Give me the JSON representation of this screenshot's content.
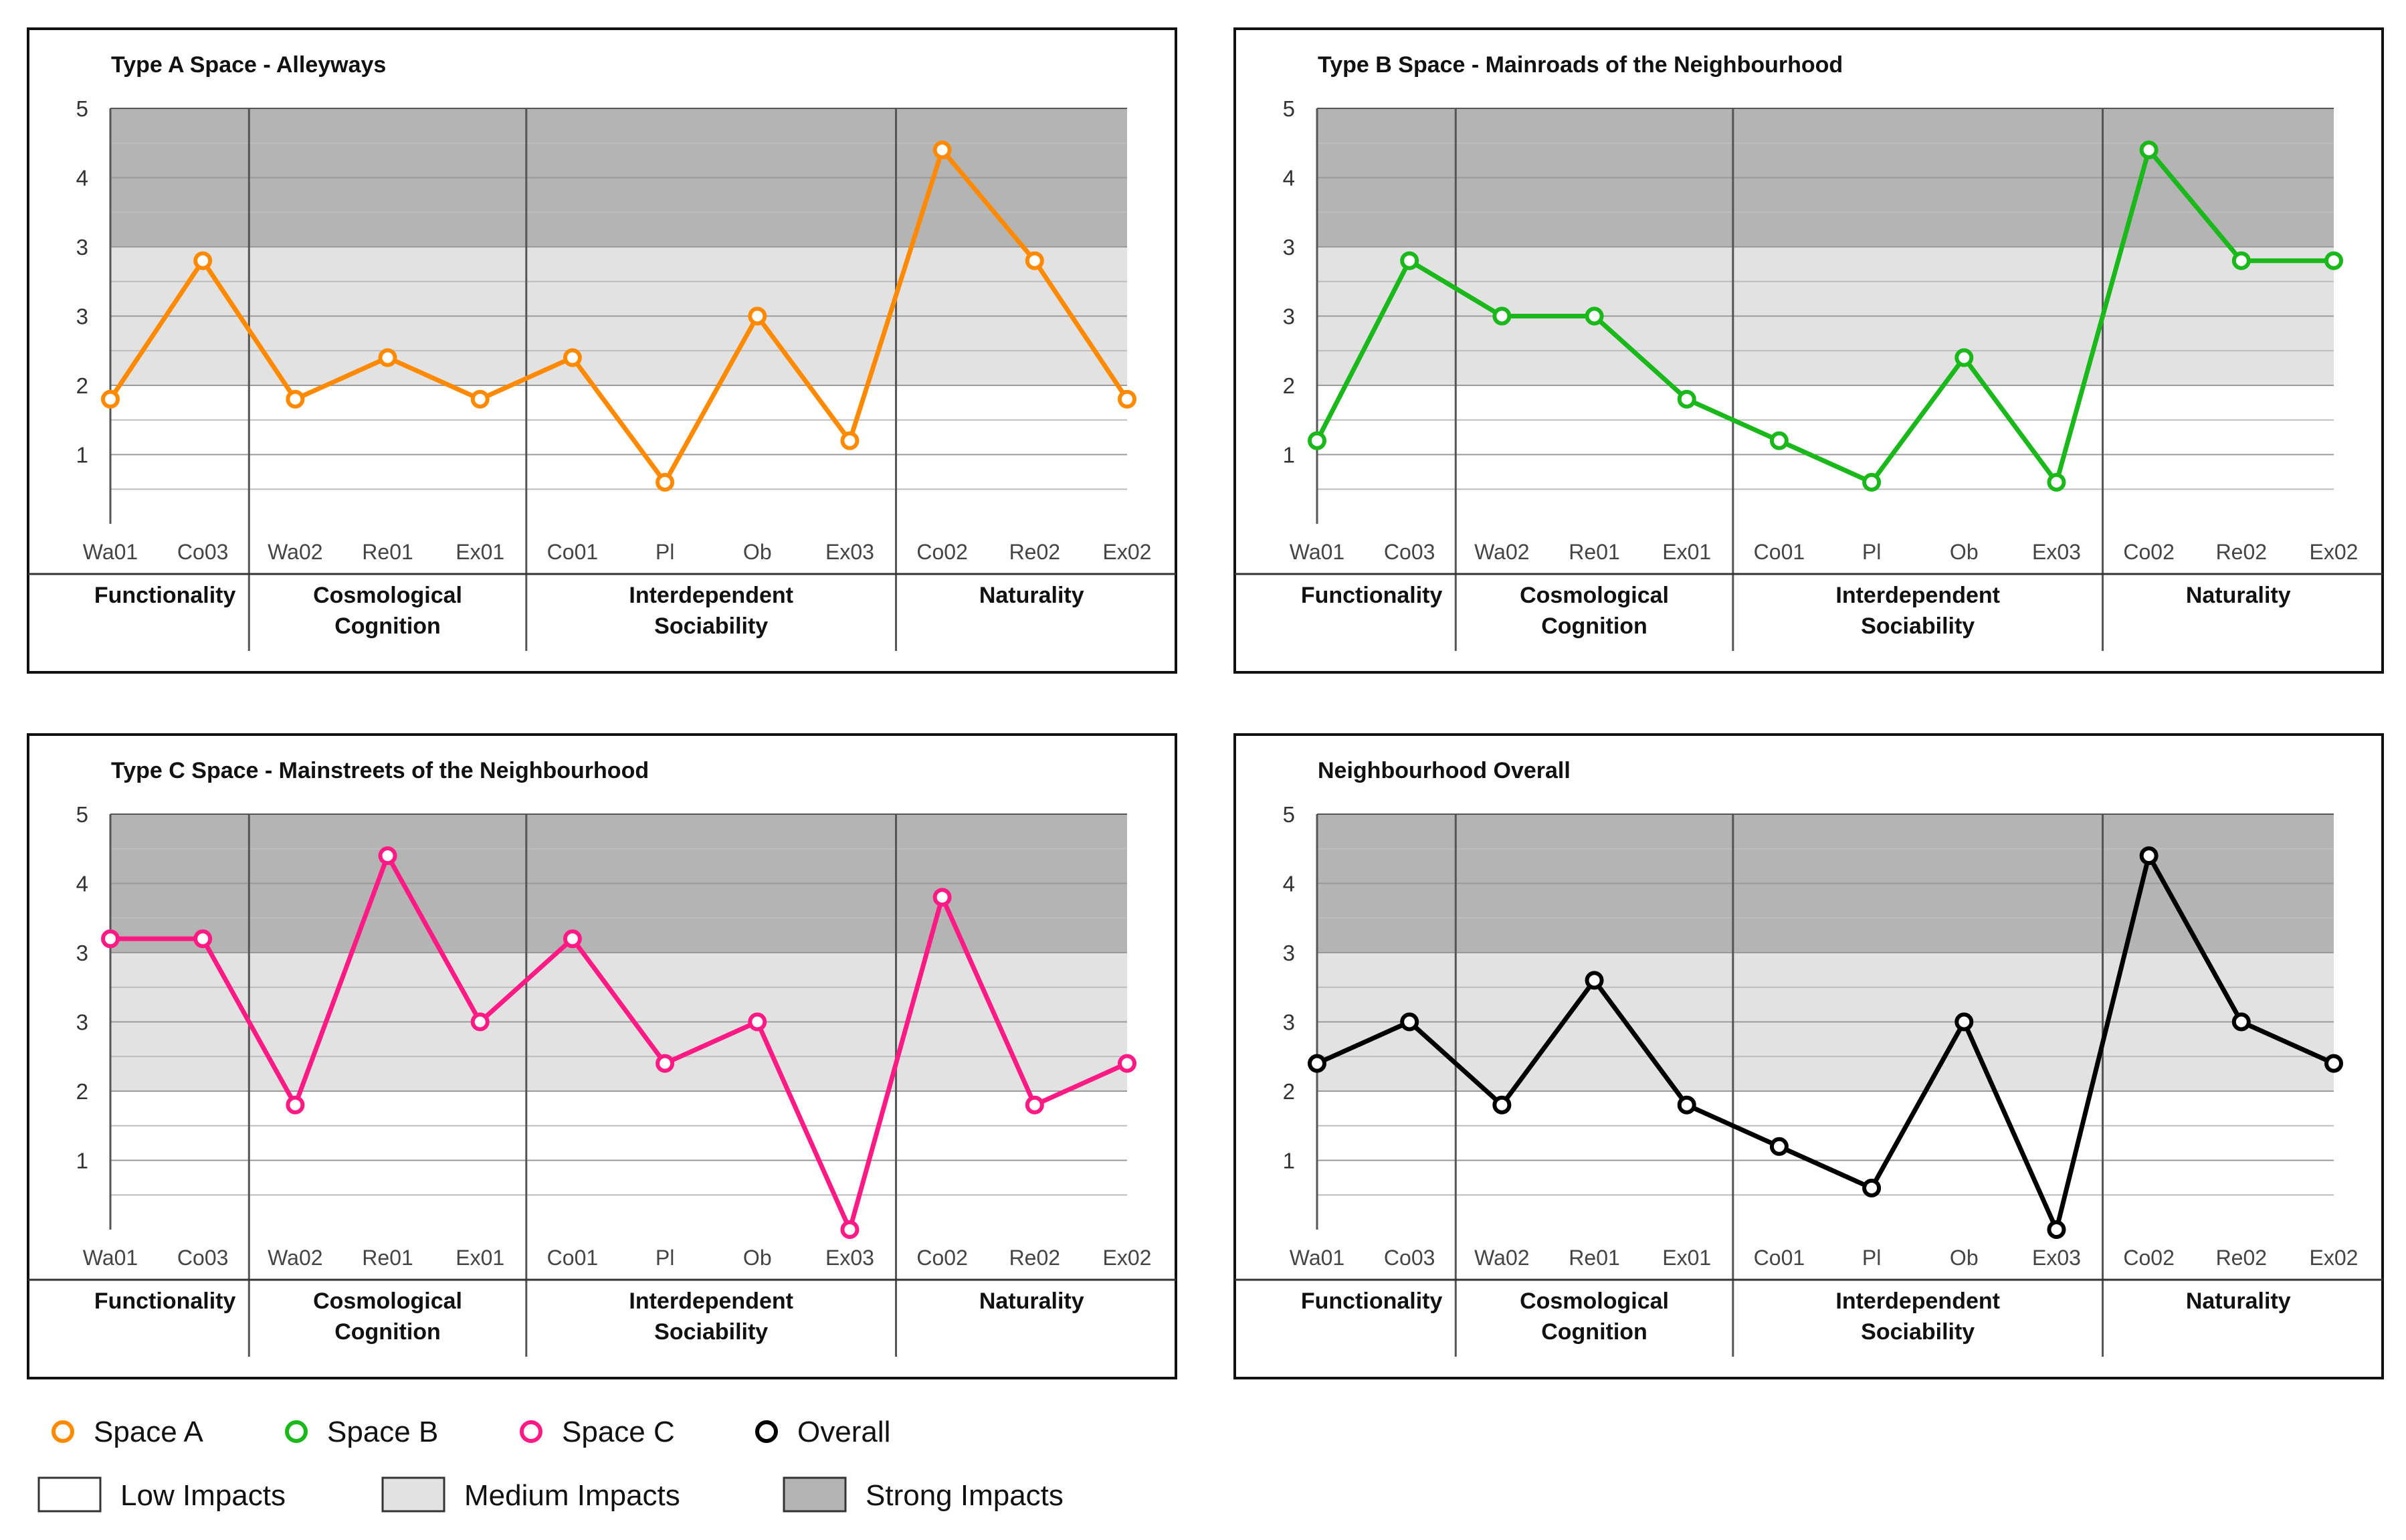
{
  "figure": {
    "background": "#ffffff",
    "zone_colors": {
      "low": "#ffffff",
      "medium": "#e2e2e2",
      "strong": "#b4b4b4"
    },
    "y_ticks": [
      "1",
      "2",
      "3",
      "3",
      "4",
      "5"
    ],
    "categories": [
      "Wa01",
      "Co03",
      "Wa02",
      "Re01",
      "Ex01",
      "Co01",
      "Pl",
      "Ob",
      "Ex03",
      "Co02",
      "Re02",
      "Ex02"
    ],
    "groups": [
      {
        "label": "Functionality",
        "span": [
          0,
          1
        ]
      },
      {
        "label": "Cosmological\nCognition",
        "span": [
          2,
          4
        ]
      },
      {
        "label": "Interdependent\nSociability",
        "span": [
          5,
          8
        ]
      },
      {
        "label": "Naturality",
        "span": [
          9,
          11
        ]
      }
    ]
  },
  "chart_data": [
    {
      "type": "line",
      "title": "Type A Space - Alleyways",
      "categories": [
        "Wa01",
        "Co03",
        "Wa02",
        "Re01",
        "Ex01",
        "Co01",
        "Pl",
        "Ob",
        "Ex03",
        "Co02",
        "Re02",
        "Ex02"
      ],
      "series": [
        {
          "name": "Space A",
          "color": "#ff8a00",
          "values": [
            1.8,
            3.8,
            1.8,
            2.4,
            1.8,
            2.4,
            0.6,
            3.0,
            1.2,
            5.4,
            3.8,
            1.8
          ]
        }
      ],
      "ylim": [
        0,
        6
      ],
      "zones": {
        "low": [
          0,
          2
        ],
        "medium": [
          2,
          4
        ],
        "strong": [
          4,
          6
        ]
      },
      "grid": true
    },
    {
      "type": "line",
      "title": "Type B Space - Mainroads of the Neighbourhood",
      "categories": [
        "Wa01",
        "Co03",
        "Wa02",
        "Re01",
        "Ex01",
        "Co01",
        "Pl",
        "Ob",
        "Ex03",
        "Co02",
        "Re02",
        "Ex02"
      ],
      "series": [
        {
          "name": "Space B",
          "color": "#1ab81a",
          "values": [
            1.2,
            3.8,
            3.0,
            3.0,
            1.8,
            1.2,
            0.6,
            2.4,
            0.6,
            5.4,
            3.8,
            3.8
          ]
        }
      ],
      "ylim": [
        0,
        6
      ],
      "zones": {
        "low": [
          0,
          2
        ],
        "medium": [
          2,
          4
        ],
        "strong": [
          4,
          6
        ]
      },
      "grid": true
    },
    {
      "type": "line",
      "title": "Type C Space - Mainstreets of the Neighbourhood",
      "categories": [
        "Wa01",
        "Co03",
        "Wa02",
        "Re01",
        "Ex01",
        "Co01",
        "Pl",
        "Ob",
        "Ex03",
        "Co02",
        "Re02",
        "Ex02"
      ],
      "series": [
        {
          "name": "Space C",
          "color": "#ff1a84",
          "values": [
            4.2,
            4.2,
            1.8,
            5.4,
            3.0,
            4.2,
            2.4,
            3.0,
            0.0,
            4.8,
            1.8,
            2.4
          ]
        }
      ],
      "ylim": [
        0,
        6
      ],
      "zones": {
        "low": [
          0,
          2
        ],
        "medium": [
          2,
          4
        ],
        "strong": [
          4,
          6
        ]
      },
      "grid": true
    },
    {
      "type": "line",
      "title": "Neighbourhood Overall",
      "categories": [
        "Wa01",
        "Co03",
        "Wa02",
        "Re01",
        "Ex01",
        "Co01",
        "Pl",
        "Ob",
        "Ex03",
        "Co02",
        "Re02",
        "Ex02"
      ],
      "series": [
        {
          "name": "Overall",
          "color": "#000000",
          "values": [
            2.4,
            3.0,
            1.8,
            3.6,
            1.8,
            1.2,
            0.6,
            3.0,
            0.0,
            5.4,
            3.0,
            2.4
          ]
        }
      ],
      "ylim": [
        0,
        6
      ],
      "zones": {
        "low": [
          0,
          2
        ],
        "medium": [
          2,
          4
        ],
        "strong": [
          4,
          6
        ]
      },
      "grid": true
    }
  ],
  "legend": {
    "series": [
      {
        "label": "Space A",
        "color": "#ff8a00"
      },
      {
        "label": "Space B",
        "color": "#1ab81a"
      },
      {
        "label": "Space C",
        "color": "#ff1a84"
      },
      {
        "label": "Overall",
        "color": "#000000"
      }
    ],
    "zones": [
      {
        "label": "Low Impacts",
        "color": "#ffffff"
      },
      {
        "label": "Medium Impacts",
        "color": "#e2e2e2"
      },
      {
        "label": "Strong Impacts",
        "color": "#b4b4b4"
      }
    ]
  }
}
